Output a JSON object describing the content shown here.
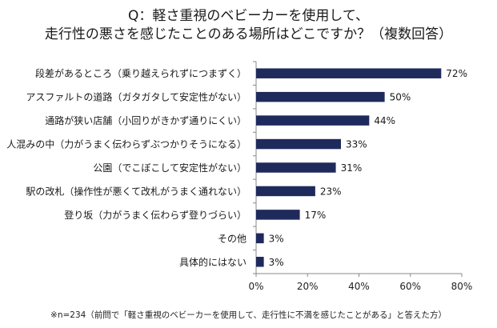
{
  "chart_data": {
    "type": "bar",
    "orientation": "horizontal",
    "title": [
      "Q：軽さ重視のベビーカーを使用して、",
      "走行性の悪さを感じたことのある場所はどこですか？（複数回答）"
    ],
    "categories": [
      "段差があるところ（乗り越えられずにつまずく）",
      "アスファルトの道路（ガタガタして安定性がない）",
      "通路が狭い店舗（小回りがきかず通りにくい）",
      "人混みの中（力がうまく伝わらずぶつかりそうになる）",
      "公園（でこぼこして安定性がない）",
      "駅の改札（操作性が悪くて改札がうまく通れない）",
      "登り坂（力がうまく伝わらず登りづらい）",
      "その他",
      "具体的にはない"
    ],
    "values": [
      72,
      50,
      44,
      33,
      31,
      23,
      17,
      3,
      3
    ],
    "value_labels": [
      "72%",
      "50%",
      "44%",
      "33%",
      "31%",
      "23%",
      "17%",
      "3%",
      "3%"
    ],
    "xlim": [
      0,
      80
    ],
    "xticks": [
      0,
      20,
      40,
      60,
      80
    ],
    "xtick_labels": [
      "0%",
      "20%",
      "40%",
      "60%",
      "80%"
    ],
    "grid": false,
    "bar_color": "#1f2a5c"
  },
  "footnote": "※n=234（前問で「軽さ重視のベビーカーを使用して、走行性に不満を感じたことがある」と答えた方）"
}
